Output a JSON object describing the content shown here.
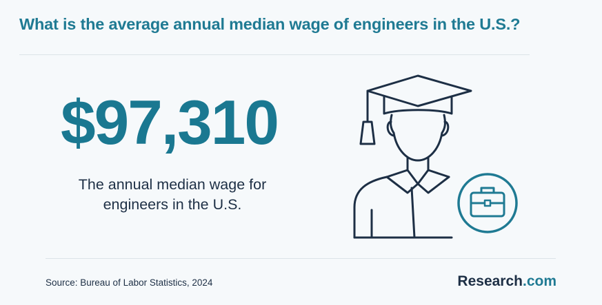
{
  "header": {
    "title": "What is the average annual median wage of engineers in the U.S.?"
  },
  "stat": {
    "value": "$97,310",
    "description": "The annual median wage for engineers in the U.S."
  },
  "illustration": {
    "icon": "graduate-with-briefcase-icon",
    "colors": {
      "outline": "#1d2f45",
      "accent": "#1f7a93"
    }
  },
  "footer": {
    "source": "Source: Bureau of Labor Statistics, 2024",
    "brand_name": "Research",
    "brand_suffix": ".com"
  },
  "colors": {
    "background": "#f6f9fb",
    "accent": "#1f7a93",
    "text": "#1d2f45"
  }
}
